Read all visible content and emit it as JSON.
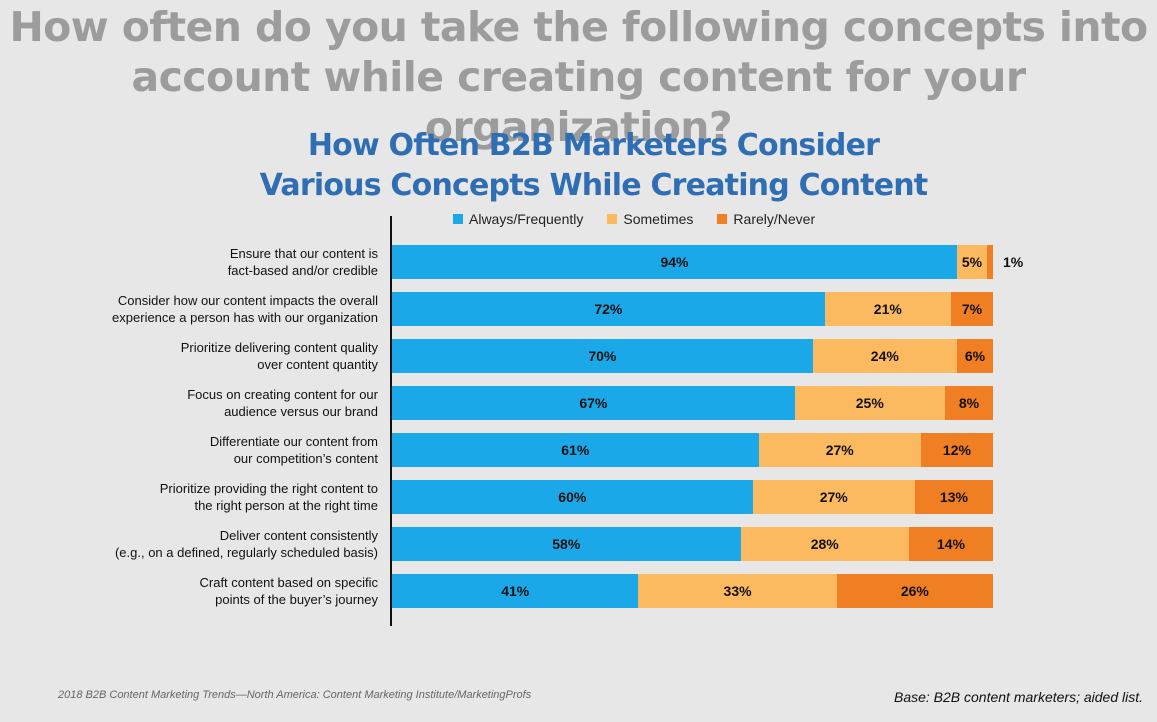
{
  "slide_title": "How often do you take the following concepts into account while creating content for your organization?",
  "chart_data": {
    "type": "bar",
    "orientation": "horizontal",
    "stacked": true,
    "title_line1": "How Often B2B Marketers Consider",
    "title_line2": "Various Concepts While Creating Content",
    "legend_position": "top",
    "xlim": [
      0,
      100
    ],
    "categories": [
      [
        "Ensure that our content is",
        "fact-based and/or credible"
      ],
      [
        "Consider how our content impacts the overall",
        "experience a person has with our organization"
      ],
      [
        "Prioritize delivering content quality",
        "over content quantity"
      ],
      [
        "Focus on creating content for our",
        "audience versus our brand"
      ],
      [
        "Differentiate our content from",
        "our competition’s content"
      ],
      [
        "Prioritize providing the right content to",
        "the right person at the right time"
      ],
      [
        "Deliver content consistently",
        "(e.g., on a defined, regularly scheduled basis)"
      ],
      [
        "Craft content based on specific",
        "points of the buyer’s journey"
      ]
    ],
    "series": [
      {
        "name": "Always/Frequently",
        "color": "#1aa8e8",
        "values": [
          94,
          72,
          70,
          67,
          61,
          60,
          58,
          41
        ]
      },
      {
        "name": "Sometimes",
        "color": "#fbb960",
        "values": [
          5,
          21,
          24,
          25,
          27,
          27,
          28,
          33
        ]
      },
      {
        "name": "Rarely/Never",
        "color": "#f07e22",
        "values": [
          1,
          7,
          6,
          8,
          12,
          13,
          14,
          26
        ]
      }
    ]
  },
  "footer": {
    "source": "2018 B2B Content Marketing Trends—North America: Content Marketing Institute/MarketingProfs",
    "base": "Base: B2B content marketers; aided list."
  }
}
